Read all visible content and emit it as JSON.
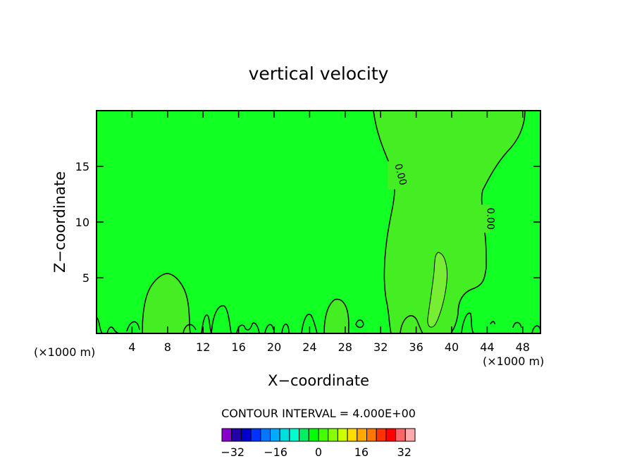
{
  "chart_data": {
    "type": "heatmap",
    "title": "vertical velocity",
    "xlabel": "X−coordinate",
    "ylabel": "Z−coordinate",
    "x_unit_left": "(×1000 m)",
    "x_unit_right": "(×1000 m)",
    "xlim": [
      0,
      50
    ],
    "ylim": [
      0,
      20
    ],
    "x_ticks": [
      4,
      8,
      12,
      16,
      20,
      24,
      28,
      32,
      36,
      40,
      44,
      48
    ],
    "y_ticks": [
      5,
      10,
      15
    ],
    "contour_interval_text": "CONTOUR INTERVAL = 4.000E+00",
    "contour_labels": [
      {
        "text": "0.00",
        "x": 33.5,
        "z": 14.2
      },
      {
        "text": "0.00",
        "x": 43.6,
        "z": 10.3
      }
    ],
    "colorbar": {
      "min": -36,
      "max": 36,
      "interval": 4,
      "tick_values": [
        -32,
        -16,
        0,
        16,
        32
      ],
      "tick_labels": [
        "−32",
        "−16",
        "0",
        "16",
        "32"
      ],
      "colors": [
        "#8800cc",
        "#2200aa",
        "#0000cc",
        "#0033ff",
        "#0077ff",
        "#00aaff",
        "#00dddd",
        "#00ffcc",
        "#00ee66",
        "#00ff00",
        "#44ff00",
        "#88ff00",
        "#ccff00",
        "#ffdd00",
        "#ffaa00",
        "#ff7700",
        "#ff3300",
        "#ff0000",
        "#ff6666",
        "#ffaaaa"
      ]
    },
    "fill_colors": {
      "background_field": "#11ff22",
      "near_zero_positive": "#44ee22",
      "weak_positive": "#77ee33"
    }
  }
}
